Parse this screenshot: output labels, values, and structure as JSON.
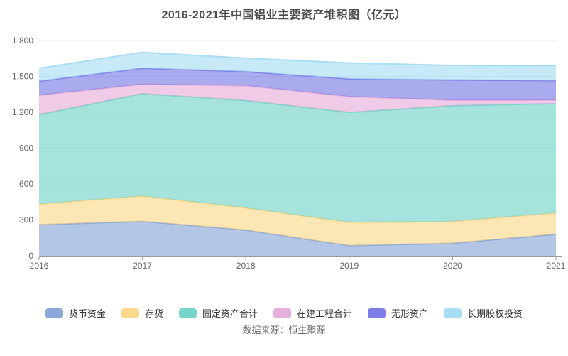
{
  "title": "2016-2021年中国铝业主要资产堆积图（亿元）",
  "footer": {
    "source": "数据来源：恒生聚源"
  },
  "colors": {
    "grid": "#e0e6f1",
    "axis_line": "#999999",
    "axis_label": "#666666",
    "title_text": "#4d4d4d",
    "legend_text": "#333333"
  },
  "chart_data": {
    "type": "area",
    "stacked": true,
    "title": "2016-2021年中国铝业主要资产堆积图（亿元）",
    "unit": "亿元",
    "x": [
      2016,
      2017,
      2018,
      2019,
      2020,
      2021
    ],
    "x_tick_labels": [
      "2016",
      "2017",
      "2018",
      "2019",
      "2020",
      "2021"
    ],
    "y_ticks": [
      0,
      300,
      600,
      900,
      1200,
      1500,
      1800
    ],
    "y_tick_labels": [
      "0",
      "300",
      "600",
      "900",
      "1,200",
      "1,500",
      "1,800"
    ],
    "ylim": [
      0,
      1800
    ],
    "grid": true,
    "legend_position": "bottom",
    "area_opacity": 0.65,
    "series": [
      {
        "name": "货币资金",
        "color": "#8ba7d9",
        "values": [
          260,
          288,
          215,
          85,
          105,
          180
        ]
      },
      {
        "name": "存货",
        "color": "#fbd88a",
        "values": [
          172,
          212,
          185,
          194,
          182,
          178
        ]
      },
      {
        "name": "固定资产合计",
        "color": "#77d4ca",
        "values": [
          748,
          855,
          898,
          920,
          968,
          914
        ]
      },
      {
        "name": "在建工程合计",
        "color": "#e7afdc",
        "values": [
          162,
          79,
          124,
          132,
          46,
          29
        ]
      },
      {
        "name": "无形资产",
        "color": "#7d7ee6",
        "values": [
          118,
          134,
          118,
          148,
          169,
          163
        ]
      },
      {
        "name": "长期股权投资",
        "color": "#a9ddf5",
        "values": [
          108,
          133,
          112,
          133,
          122,
          125
        ]
      }
    ]
  }
}
